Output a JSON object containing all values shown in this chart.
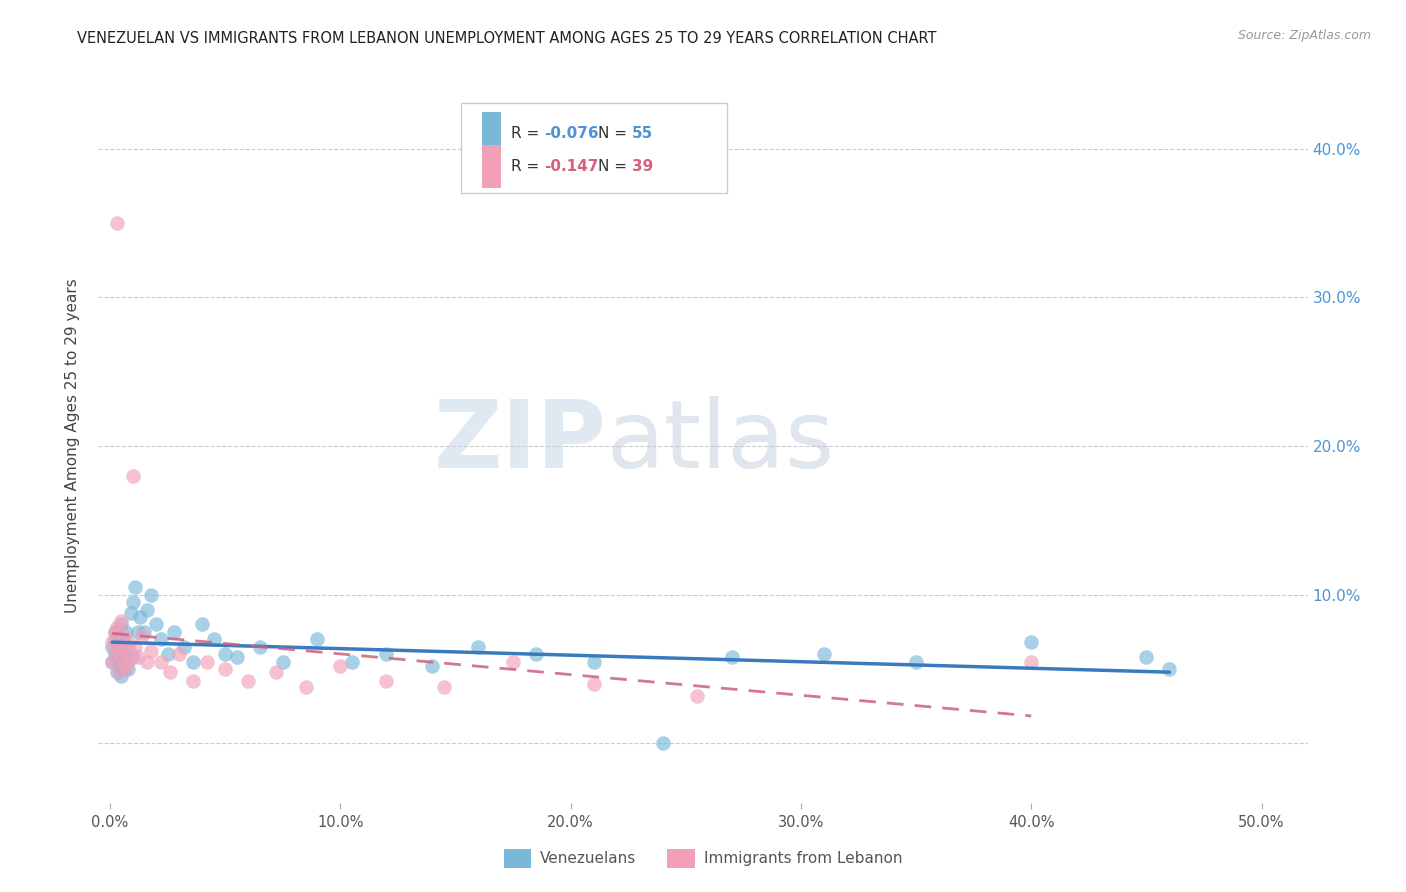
{
  "title": "VENEZUELAN VS IMMIGRANTS FROM LEBANON UNEMPLOYMENT AMONG AGES 25 TO 29 YEARS CORRELATION CHART",
  "source": "Source: ZipAtlas.com",
  "ylabel": "Unemployment Among Ages 25 to 29 years",
  "x_ticks": [
    0.0,
    0.1,
    0.2,
    0.3,
    0.4,
    0.5
  ],
  "x_tick_labels": [
    "0.0%",
    "10.0%",
    "20.0%",
    "30.0%",
    "40.0%",
    "50.0%"
  ],
  "y_ticks": [
    0.0,
    0.1,
    0.2,
    0.3,
    0.4
  ],
  "y_tick_labels_right": [
    "",
    "10.0%",
    "20.0%",
    "30.0%",
    "40.0%"
  ],
  "xlim": [
    -0.005,
    0.52
  ],
  "ylim": [
    -0.04,
    0.44
  ],
  "legend_label1": "Venezuelans",
  "legend_label2": "Immigrants from Lebanon",
  "R1": "-0.076",
  "N1": "55",
  "R2": "-0.147",
  "N2": "39",
  "color_blue": "#7ab8d9",
  "color_pink": "#f2a0b8",
  "color_blue_text": "#4d94d4",
  "color_pink_text": "#d4607a",
  "color_line_blue": "#3a7abf",
  "color_line_pink": "#cc6080",
  "watermark_zip": "ZIP",
  "watermark_atlas": "atlas",
  "venezuelan_x": [
    0.001,
    0.001,
    0.002,
    0.002,
    0.002,
    0.003,
    0.003,
    0.003,
    0.004,
    0.004,
    0.004,
    0.005,
    0.005,
    0.005,
    0.006,
    0.006,
    0.007,
    0.007,
    0.008,
    0.008,
    0.009,
    0.01,
    0.01,
    0.011,
    0.012,
    0.013,
    0.015,
    0.016,
    0.018,
    0.02,
    0.022,
    0.025,
    0.028,
    0.032,
    0.036,
    0.04,
    0.045,
    0.05,
    0.055,
    0.065,
    0.075,
    0.09,
    0.105,
    0.12,
    0.14,
    0.16,
    0.185,
    0.21,
    0.24,
    0.27,
    0.31,
    0.35,
    0.4,
    0.45,
    0.46
  ],
  "venezuelan_y": [
    0.065,
    0.055,
    0.07,
    0.06,
    0.075,
    0.058,
    0.068,
    0.048,
    0.072,
    0.052,
    0.062,
    0.08,
    0.045,
    0.055,
    0.068,
    0.05,
    0.075,
    0.058,
    0.065,
    0.05,
    0.088,
    0.095,
    0.058,
    0.105,
    0.075,
    0.085,
    0.075,
    0.09,
    0.1,
    0.08,
    0.07,
    0.06,
    0.075,
    0.065,
    0.055,
    0.08,
    0.07,
    0.06,
    0.058,
    0.065,
    0.055,
    0.07,
    0.055,
    0.06,
    0.052,
    0.065,
    0.06,
    0.055,
    0.0,
    0.058,
    0.06,
    0.055,
    0.068,
    0.058,
    0.05
  ],
  "lebanon_x": [
    0.001,
    0.001,
    0.002,
    0.002,
    0.003,
    0.003,
    0.004,
    0.004,
    0.005,
    0.005,
    0.006,
    0.006,
    0.007,
    0.007,
    0.008,
    0.008,
    0.009,
    0.01,
    0.011,
    0.012,
    0.014,
    0.016,
    0.018,
    0.022,
    0.026,
    0.03,
    0.036,
    0.042,
    0.05,
    0.06,
    0.072,
    0.085,
    0.1,
    0.12,
    0.145,
    0.175,
    0.21,
    0.255,
    0.4
  ],
  "lebanon_y": [
    0.068,
    0.055,
    0.075,
    0.062,
    0.078,
    0.35,
    0.06,
    0.048,
    0.082,
    0.065,
    0.072,
    0.055,
    0.065,
    0.05,
    0.068,
    0.055,
    0.06,
    0.18,
    0.065,
    0.058,
    0.072,
    0.055,
    0.062,
    0.055,
    0.048,
    0.06,
    0.042,
    0.055,
    0.05,
    0.042,
    0.048,
    0.038,
    0.052,
    0.042,
    0.038,
    0.055,
    0.04,
    0.032,
    0.055
  ]
}
